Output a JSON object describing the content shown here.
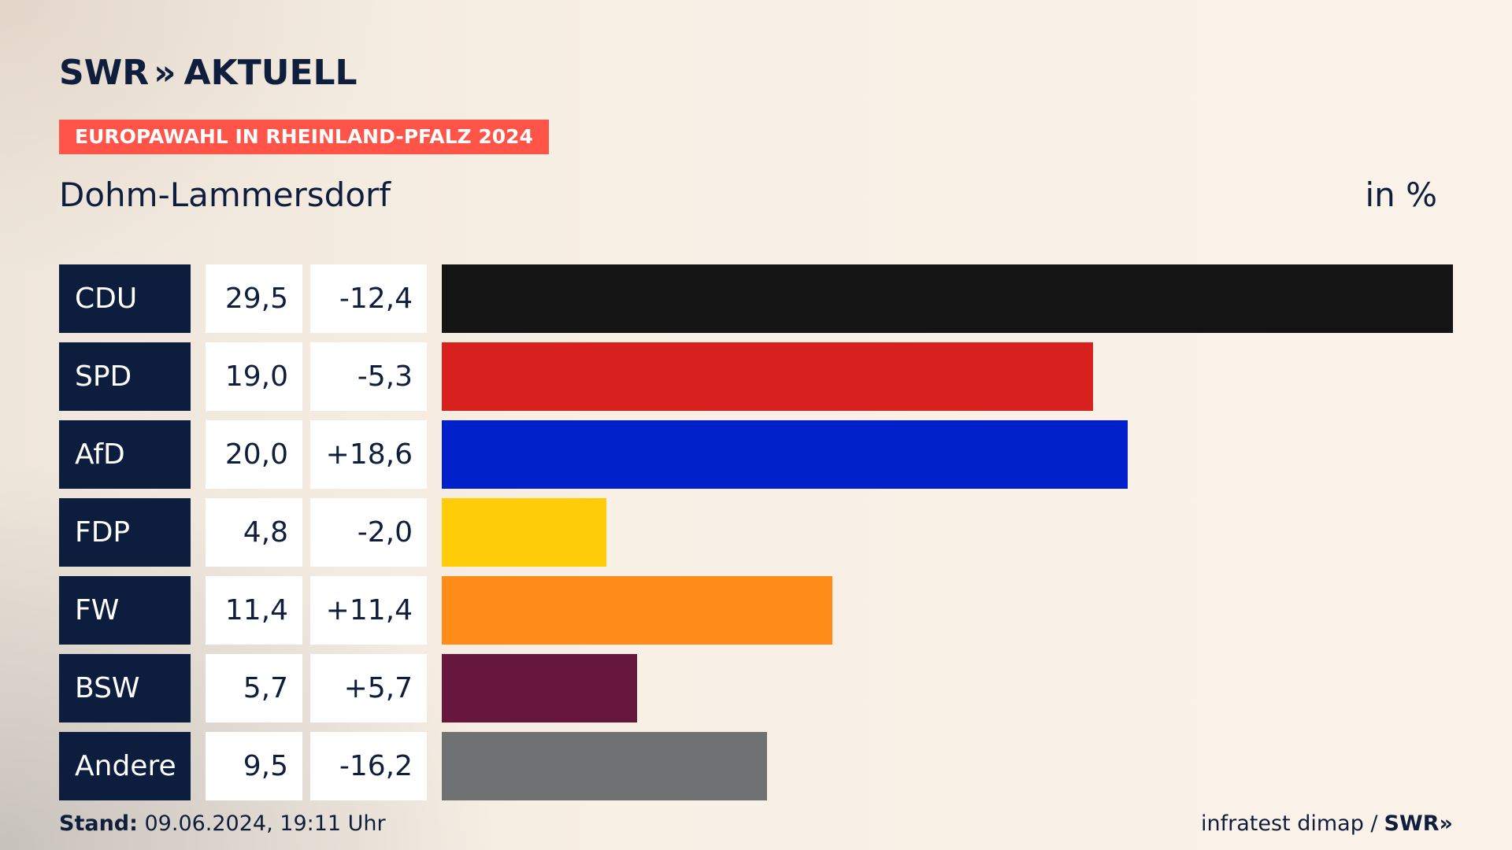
{
  "brand": {
    "name": "SWR",
    "chevron": "»",
    "suffix": "AKTUELL"
  },
  "header": {
    "tag": "EUROPAWAHL IN RHEINLAND-PFALZ 2024",
    "subtitle": "Dohm-Lammersdorf",
    "unit": "in %"
  },
  "footer": {
    "stand_label": "Stand:",
    "stand_value": " 09.06.2024, 19:11 Uhr",
    "source": "infratest dimap / ",
    "source_brand": "SWR»"
  },
  "chart_data": {
    "type": "bar",
    "orientation": "horizontal",
    "categories": [
      "CDU",
      "SPD",
      "AfD",
      "FDP",
      "FW",
      "BSW",
      "Andere"
    ],
    "values": [
      29.5,
      19.0,
      20.0,
      4.8,
      11.4,
      5.7,
      9.5
    ],
    "value_labels": [
      "29,5",
      "19,0",
      "20,0",
      "4,8",
      "11,4",
      "5,7",
      "9,5"
    ],
    "diff_labels": [
      "-12,4",
      "-5,3",
      "+18,6",
      "-2,0",
      "+11,4",
      "+5,7",
      "-16,2"
    ],
    "colors": [
      "#141414",
      "#d8201e",
      "#0021c9",
      "#ffcc0a",
      "#ff8c18",
      "#67173d",
      "#707173"
    ],
    "title": "Dohm-Lammersdorf",
    "xlabel": "",
    "ylabel": "in %",
    "xlim": [
      0,
      29.5
    ],
    "grid": false,
    "legend": "none"
  }
}
